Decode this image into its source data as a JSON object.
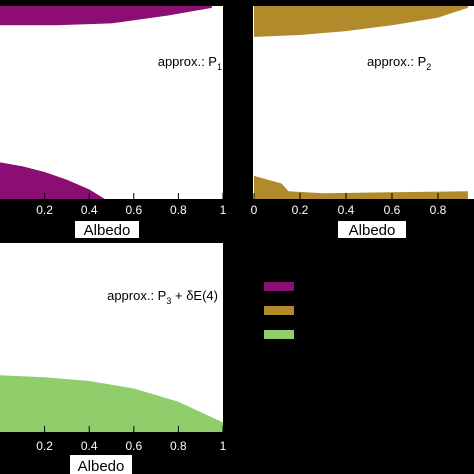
{
  "colors": {
    "background": "#000000",
    "plot_bg": "#ffffff",
    "purple": "#8b0e73",
    "gold": "#b08a2b",
    "green": "#8fce6b"
  },
  "panels": [
    {
      "annotation": "approx.: P",
      "annotation_sub": "1",
      "xlabel": "Albedo"
    },
    {
      "annotation": "approx.: P",
      "annotation_sub": "2",
      "xlabel": "Albedo"
    },
    {
      "annotation": "approx.: P",
      "annotation_sub": "3",
      "annotation_tail": " + δE(4)",
      "xlabel": "Albedo"
    }
  ],
  "legend": {
    "swatches": [
      "purple",
      "gold",
      "green"
    ]
  },
  "chart_data": [
    {
      "type": "area",
      "xlabel": "Albedo",
      "xlim": [
        0,
        1
      ],
      "tick_labels": [
        "0.2",
        "0.4",
        "0.6",
        "0.8",
        "1"
      ],
      "annotation": "approx.: P1",
      "series": [
        {
          "color": "#8b0e73",
          "region": "top",
          "x": [
            0,
            0.25,
            0.5,
            0.75,
            0.95
          ],
          "y": [
            0.9,
            0.9,
            0.91,
            0.95,
            0.99
          ]
        },
        {
          "color": "#8b0e73",
          "region": "bottom",
          "x": [
            0,
            0.1,
            0.2,
            0.3,
            0.4,
            0.47
          ],
          "y": [
            0.19,
            0.17,
            0.14,
            0.1,
            0.05,
            0.0
          ]
        }
      ]
    },
    {
      "type": "area",
      "xlabel": "Albedo",
      "xlim": [
        0,
        1
      ],
      "tick_labels": [
        "0",
        "0.2",
        "0.4",
        "0.6",
        "0.8"
      ],
      "annotation": "approx.: P2",
      "series": [
        {
          "color": "#b08a2b",
          "region": "top",
          "x": [
            0,
            0.2,
            0.4,
            0.6,
            0.8,
            0.93
          ],
          "y": [
            0.84,
            0.85,
            0.87,
            0.9,
            0.94,
            0.99
          ]
        },
        {
          "color": "#b08a2b",
          "region": "bottom",
          "x": [
            0,
            0.12,
            0.15,
            0.3,
            0.6,
            0.93
          ],
          "y": [
            0.12,
            0.08,
            0.04,
            0.03,
            0.035,
            0.04
          ]
        }
      ]
    },
    {
      "type": "area",
      "xlabel": "Albedo",
      "xlim": [
        0,
        1
      ],
      "tick_labels": [
        "0.2",
        "0.4",
        "0.6",
        "0.8",
        "1"
      ],
      "annotation": "approx.: P3 + δE(4)",
      "series": [
        {
          "color": "#8fce6b",
          "region": "bottom",
          "x": [
            0,
            0.2,
            0.4,
            0.6,
            0.8,
            1.0
          ],
          "y": [
            0.3,
            0.29,
            0.27,
            0.23,
            0.16,
            0.05
          ]
        }
      ]
    }
  ]
}
